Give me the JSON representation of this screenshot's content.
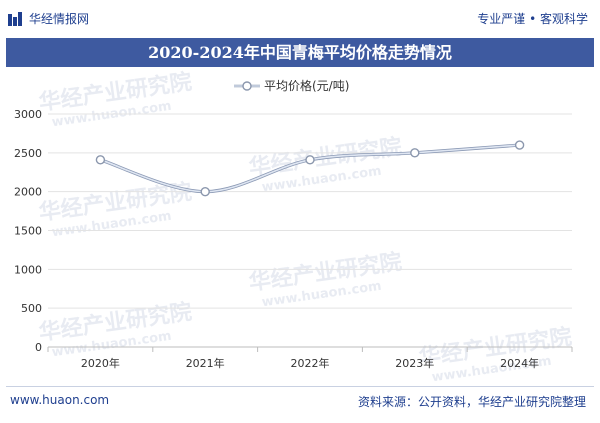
{
  "header": {
    "brand": "华经情报网",
    "slogan": "专业严谨 • 客观科学"
  },
  "title": "2020-2024年中国青梅平均价格走势情况",
  "footer": {
    "url": "www.huaon.com",
    "source": "资料来源：公开资料，华经产业研究院整理"
  },
  "watermark": {
    "text_cn": "华经产业研究院",
    "text_en": "www.huaon.com"
  },
  "colors": {
    "brand": "#1f3f8f",
    "title_band": "#3e5aa0",
    "line": "#a9b8d6",
    "marker_stroke": "#8b97ad"
  },
  "chart_data": {
    "type": "line",
    "categories": [
      "2020年",
      "2021年",
      "2022年",
      "2023年",
      "2024年"
    ],
    "series": [
      {
        "name": "平均价格(元/吨)",
        "values": [
          2410,
          2000,
          2410,
          2500,
          2600
        ]
      }
    ],
    "ylim": [
      0,
      3000
    ],
    "yticks": [
      0,
      500,
      1000,
      1500,
      2000,
      2500,
      3000
    ],
    "ytick_labels": [
      "0",
      "500",
      "1000",
      "1500",
      "2000",
      "2500",
      "3000"
    ],
    "legend_position": "top-center",
    "grid": true
  }
}
